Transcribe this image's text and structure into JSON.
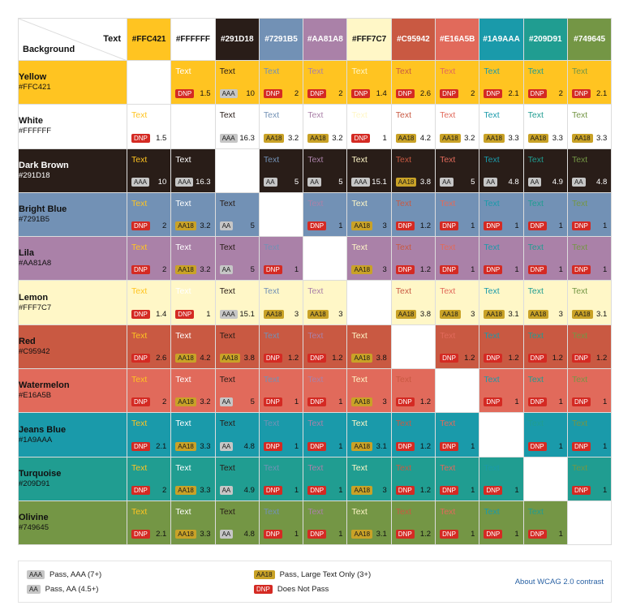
{
  "header": {
    "text_label": "Text",
    "background_label": "Background"
  },
  "colors": [
    {
      "name": "Yellow",
      "hex": "#FFC421"
    },
    {
      "name": "White",
      "hex": "#FFFFFF"
    },
    {
      "name": "Dark Brown",
      "hex": "#291D18"
    },
    {
      "name": "Bright Blue",
      "hex": "#7291B5"
    },
    {
      "name": "Lila",
      "hex": "#AA81A8"
    },
    {
      "name": "Lemon",
      "hex": "#FFF7C7"
    },
    {
      "name": "Red",
      "hex": "#C95942"
    },
    {
      "name": "Watermelon",
      "hex": "#E16A5B"
    },
    {
      "name": "Jeans Blue",
      "hex": "#1A9AAA"
    },
    {
      "name": "Turquoise",
      "hex": "#209D91"
    },
    {
      "name": "Olivine",
      "hex": "#749645"
    }
  ],
  "sample_text": "Text",
  "matrix": [
    [
      null,
      [
        "DNP",
        "1.5"
      ],
      [
        "AAA",
        "10"
      ],
      [
        "DNP",
        "2"
      ],
      [
        "DNP",
        "2"
      ],
      [
        "DNP",
        "1.4"
      ],
      [
        "DNP",
        "2.6"
      ],
      [
        "DNP",
        "2"
      ],
      [
        "DNP",
        "2.1"
      ],
      [
        "DNP",
        "2"
      ],
      [
        "DNP",
        "2.1"
      ]
    ],
    [
      [
        "DNP",
        "1.5"
      ],
      null,
      [
        "AAA",
        "16.3"
      ],
      [
        "AA18",
        "3.2"
      ],
      [
        "AA18",
        "3.2"
      ],
      [
        "DNP",
        "1"
      ],
      [
        "AA18",
        "4.2"
      ],
      [
        "AA18",
        "3.2"
      ],
      [
        "AA18",
        "3.3"
      ],
      [
        "AA18",
        "3.3"
      ],
      [
        "AA18",
        "3.3"
      ]
    ],
    [
      [
        "AAA",
        "10"
      ],
      [
        "AAA",
        "16.3"
      ],
      null,
      [
        "AA",
        "5"
      ],
      [
        "AA",
        "5"
      ],
      [
        "AAA",
        "15.1"
      ],
      [
        "AA18",
        "3.8"
      ],
      [
        "AA",
        "5"
      ],
      [
        "AA",
        "4.8"
      ],
      [
        "AA",
        "4.9"
      ],
      [
        "AA",
        "4.8"
      ]
    ],
    [
      [
        "DNP",
        "2"
      ],
      [
        "AA18",
        "3.2"
      ],
      [
        "AA",
        "5"
      ],
      null,
      [
        "DNP",
        "1"
      ],
      [
        "AA18",
        "3"
      ],
      [
        "DNP",
        "1.2"
      ],
      [
        "DNP",
        "1"
      ],
      [
        "DNP",
        "1"
      ],
      [
        "DNP",
        "1"
      ],
      [
        "DNP",
        "1"
      ]
    ],
    [
      [
        "DNP",
        "2"
      ],
      [
        "AA18",
        "3.2"
      ],
      [
        "AA",
        "5"
      ],
      [
        "DNP",
        "1"
      ],
      null,
      [
        "AA18",
        "3"
      ],
      [
        "DNP",
        "1.2"
      ],
      [
        "DNP",
        "1"
      ],
      [
        "DNP",
        "1"
      ],
      [
        "DNP",
        "1"
      ],
      [
        "DNP",
        "1"
      ]
    ],
    [
      [
        "DNP",
        "1.4"
      ],
      [
        "DNP",
        "1"
      ],
      [
        "AAA",
        "15.1"
      ],
      [
        "AA18",
        "3"
      ],
      [
        "AA18",
        "3"
      ],
      null,
      [
        "AA18",
        "3.8"
      ],
      [
        "AA18",
        "3"
      ],
      [
        "AA18",
        "3.1"
      ],
      [
        "AA18",
        "3"
      ],
      [
        "AA18",
        "3.1"
      ]
    ],
    [
      [
        "DNP",
        "2.6"
      ],
      [
        "AA18",
        "4.2"
      ],
      [
        "AA18",
        "3.8"
      ],
      [
        "DNP",
        "1.2"
      ],
      [
        "DNP",
        "1.2"
      ],
      [
        "AA18",
        "3.8"
      ],
      null,
      [
        "DNP",
        "1.2"
      ],
      [
        "DNP",
        "1.2"
      ],
      [
        "DNP",
        "1.2"
      ],
      [
        "DNP",
        "1.2"
      ]
    ],
    [
      [
        "DNP",
        "2"
      ],
      [
        "AA18",
        "3.2"
      ],
      [
        "AA",
        "5"
      ],
      [
        "DNP",
        "1"
      ],
      [
        "DNP",
        "1"
      ],
      [
        "AA18",
        "3"
      ],
      [
        "DNP",
        "1.2"
      ],
      null,
      [
        "DNP",
        "1"
      ],
      [
        "DNP",
        "1"
      ],
      [
        "DNP",
        "1"
      ]
    ],
    [
      [
        "DNP",
        "2.1"
      ],
      [
        "AA18",
        "3.3"
      ],
      [
        "AA",
        "4.8"
      ],
      [
        "DNP",
        "1"
      ],
      [
        "DNP",
        "1"
      ],
      [
        "AA18",
        "3.1"
      ],
      [
        "DNP",
        "1.2"
      ],
      [
        "DNP",
        "1"
      ],
      null,
      [
        "DNP",
        "1"
      ],
      [
        "DNP",
        "1"
      ]
    ],
    [
      [
        "DNP",
        "2"
      ],
      [
        "AA18",
        "3.3"
      ],
      [
        "AA",
        "4.9"
      ],
      [
        "DNP",
        "1"
      ],
      [
        "DNP",
        "1"
      ],
      [
        "AA18",
        "3"
      ],
      [
        "DNP",
        "1.2"
      ],
      [
        "DNP",
        "1"
      ],
      [
        "DNP",
        "1"
      ],
      null,
      [
        "DNP",
        "1"
      ]
    ],
    [
      [
        "DNP",
        "2.1"
      ],
      [
        "AA18",
        "3.3"
      ],
      [
        "AA",
        "4.8"
      ],
      [
        "DNP",
        "1"
      ],
      [
        "DNP",
        "1"
      ],
      [
        "AA18",
        "3.1"
      ],
      [
        "DNP",
        "1.2"
      ],
      [
        "DNP",
        "1"
      ],
      [
        "DNP",
        "1"
      ],
      [
        "DNP",
        "1"
      ],
      null
    ]
  ],
  "badge_styles": {
    "AAA": {
      "bg": "#c6c6c6",
      "fg": "#1a1a1a"
    },
    "AA": {
      "bg": "#c6c6c6",
      "fg": "#1a1a1a"
    },
    "AA18": {
      "bg": "#c9a227",
      "fg": "#1a1a1a"
    },
    "DNP": {
      "bg": "#d42a23",
      "fg": "#ffffff"
    }
  },
  "legend": {
    "aaa": {
      "badge": "AAA",
      "label": "Pass, AAA (7+)"
    },
    "aa": {
      "badge": "AA",
      "label": "Pass, AA (4.5+)"
    },
    "aa18": {
      "badge": "AA18",
      "label": "Pass, Large Text Only (3+)"
    },
    "dnp": {
      "badge": "DNP",
      "label": "Does Not Pass"
    },
    "link": "About WCAG 2.0 contrast"
  }
}
